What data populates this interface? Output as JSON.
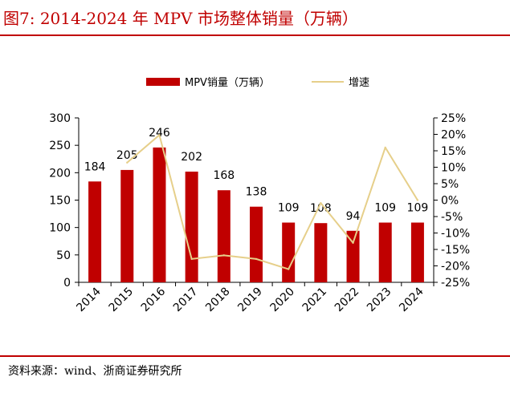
{
  "figure": {
    "title": "图7:  2014-2024 年 MPV 市场整体销量（万辆）",
    "source": "资料来源：wind、浙商证券研究所"
  },
  "colors": {
    "bar": "#c00000",
    "line": "#e6cf8a",
    "title": "#c00000",
    "axis": "#000000"
  },
  "chart_data": {
    "type": "bar",
    "categories": [
      "2014",
      "2015",
      "2016",
      "2017",
      "2018",
      "2019",
      "2020",
      "2021",
      "2022",
      "2023",
      "2024"
    ],
    "series": [
      {
        "name": "MPV销量（万辆）",
        "type": "bar",
        "axis": "left",
        "values": [
          184,
          205,
          246,
          202,
          168,
          138,
          109,
          108,
          94,
          109,
          109
        ]
      },
      {
        "name": "增速",
        "type": "line",
        "axis": "right",
        "values": [
          null,
          11.4,
          19.8,
          -17.9,
          -16.8,
          -17.9,
          -21.0,
          -0.9,
          -13.0,
          16.0,
          0
        ]
      }
    ],
    "data_labels": [
      "184",
      "205",
      "246",
      "202",
      "168",
      "138",
      "109",
      "108",
      "94",
      "109",
      "109"
    ],
    "ylim": [
      0,
      300
    ],
    "yticks": [
      "0",
      "50",
      "100",
      "150",
      "200",
      "250",
      "300"
    ],
    "y2lim": [
      -25,
      25
    ],
    "y2ticks": [
      "-25%",
      "-20%",
      "-15%",
      "-10%",
      "-5%",
      "0%",
      "5%",
      "10%",
      "15%",
      "20%",
      "25%"
    ],
    "legend_position": "top",
    "grid": false
  }
}
